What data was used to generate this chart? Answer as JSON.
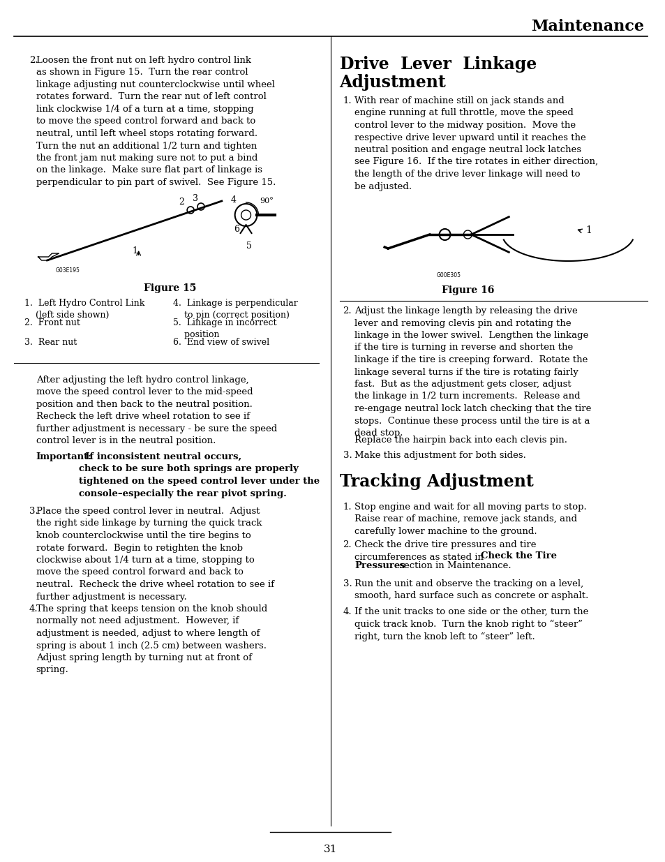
{
  "bg_color": "#ffffff",
  "text_color": "#000000",
  "title": "Maintenance",
  "page_number": "31",
  "header_title": "Maintenance",
  "left_col": {
    "items": [
      {
        "type": "numbered_para",
        "number": "2.",
        "text": "Loosen the front nut on left hydro control link as shown in Figure 15.  Turn the rear control linkage adjusting nut counterclockwise until wheel rotates forward.  Turn the rear nut of left control link clockwise 1/4 of a turn at a time, stopping to move the speed control forward and back to neutral, until left wheel stops rotating forward.  Turn the nut an additional 1/2 turn and tighten the front jam nut making sure not to put a bind on the linkage.  Make sure flat part of linkage is perpendicular to pin part of swivel.  See Figure 15."
      },
      {
        "type": "figure",
        "label": "Figure 15",
        "caption_items": [
          [
            "1.",
            "Left Hydro Control Link\n(left side shown)",
            "4.",
            "Linkage is perpendicular\nto pin (correct position)"
          ],
          [
            "2.",
            "Front nut",
            "5.",
            "Linkage in incorrect\nposition"
          ],
          [
            "3.",
            "Rear nut",
            "6.",
            "End view of swivel"
          ]
        ]
      },
      {
        "type": "para",
        "text": "After adjusting the left hydro control linkage, move the speed control lever to the mid-speed position and then back to the neutral position. Recheck the left drive wheel rotation to see if further adjustment is necessary - be sure the speed control lever is in the neutral position."
      },
      {
        "type": "bold_important",
        "label": "Important:",
        "text": " If inconsistent neutral occurs, check to be sure both springs are properly tightened on the speed control lever under the console–especially the rear pivot spring."
      },
      {
        "type": "numbered_para",
        "number": "3.",
        "text": "Place the speed control lever in neutral.  Adjust the right side linkage by turning the quick track knob counterclockwise until the tire begins to rotate forward.  Begin to retighten the knob clockwise about 1/4 turn at a time, stopping to move the speed control forward and back to neutral.  Recheck the drive wheel rotation to see if further adjustment is necessary."
      },
      {
        "type": "numbered_para",
        "number": "4.",
        "text": "The spring that keeps tension on the knob should normally not need adjustment.  However, if adjustment is needed, adjust to where length of spring is about 1 inch (2.5 cm) between washers.  Adjust spring length by turning nut at front of spring."
      }
    ]
  },
  "right_col": {
    "items": [
      {
        "type": "section_title",
        "text": "Drive  Lever  Linkage\nAdjustment"
      },
      {
        "type": "numbered_para",
        "number": "1.",
        "text": "With rear of machine still on jack stands and engine running at full throttle, move the speed control lever to the midway position.  Move the respective drive lever upward until it reaches the neutral position and engage neutral lock latches see Figure 16.  If the tire rotates in either direction, the length of the drive lever linkage will need to be adjusted."
      },
      {
        "type": "figure",
        "label": "Figure 16"
      },
      {
        "type": "numbered_para",
        "number": "2.",
        "text": "Adjust the linkage length by releasing the drive lever and removing clevis pin and rotating the linkage in the lower swivel.  Lengthen the linkage if the tire is turning in reverse and shorten the linkage if the tire is creeping forward.  Rotate the linkage several turns if the tire is rotating fairly fast.  But as the adjustment gets closer, adjust the linkage in 1/2 turn increments.  Release and re-engage neutral lock latch checking that the tire stops.  Continue these process until the tire is at a dead stop."
      },
      {
        "type": "para",
        "text": "Replace the hairpin back into each clevis pin."
      },
      {
        "type": "numbered_para",
        "number": "3.",
        "text": "Make this adjustment for both sides."
      },
      {
        "type": "section_title",
        "text": "Tracking Adjustment"
      },
      {
        "type": "numbered_para",
        "number": "1.",
        "text": "Stop engine and wait for all moving parts to stop.  Raise rear of machine, remove jack stands, and carefully lower machine to the ground."
      },
      {
        "type": "numbered_para",
        "number": "2.",
        "text": "Check the drive tire pressures and tire circumferences as stated in Check the Tire Pressures section in Maintenance.",
        "bold_phrase": "Check the Tire\nPressures"
      },
      {
        "type": "numbered_para",
        "number": "3.",
        "text": "Run the unit and observe the tracking on a level, smooth, hard surface such as concrete or asphalt."
      },
      {
        "type": "numbered_para",
        "number": "4.",
        "text": "If the unit tracks to one side or the other, turn the quick track knob.  Turn the knob right to “steer” right, turn the knob left to “steer” left."
      }
    ]
  }
}
